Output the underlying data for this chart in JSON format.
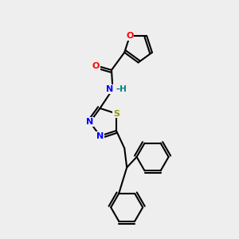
{
  "bg_color": "#eeeeee",
  "atom_colors": {
    "C": "#000000",
    "N": "#0000ff",
    "O": "#ff0000",
    "S": "#999900",
    "H": "#008080"
  },
  "bond_color": "#000000",
  "bond_width": 1.5,
  "figsize": [
    3.0,
    3.0
  ],
  "dpi": 100
}
